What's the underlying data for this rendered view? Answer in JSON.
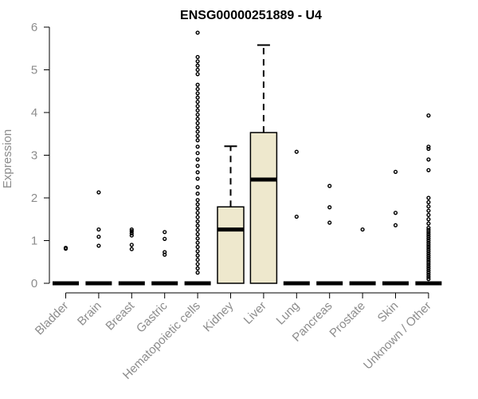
{
  "chart_data": {
    "type": "box",
    "title": "ENSG00000251889 - U4",
    "xlabel": "",
    "ylabel": "Expression",
    "ylim": [
      0,
      6
    ],
    "yticks": [
      0,
      1,
      2,
      3,
      4,
      5,
      6
    ],
    "grid": false,
    "categories": [
      "Bladder",
      "Brain",
      "Breast",
      "Gastric",
      "Hematopoietic cells",
      "Kidney",
      "Liver",
      "Lung",
      "Pancreas",
      "Prostate",
      "Skin",
      "Unknown / Other"
    ],
    "boxes": [
      {
        "category": "Bladder",
        "q1": 0,
        "median": 0,
        "q3": 0,
        "whisker_low": 0,
        "whisker_high": 0,
        "outliers": [
          0.81,
          0.83
        ]
      },
      {
        "category": "Brain",
        "q1": 0,
        "median": 0,
        "q3": 0,
        "whisker_low": 0,
        "whisker_high": 0,
        "outliers": [
          0.88,
          1.09,
          1.26,
          2.13
        ]
      },
      {
        "category": "Breast",
        "q1": 0,
        "median": 0,
        "q3": 0,
        "whisker_low": 0,
        "whisker_high": 0,
        "outliers": [
          0.8,
          0.9,
          1.12,
          1.17,
          1.22,
          1.26
        ]
      },
      {
        "category": "Gastric",
        "q1": 0,
        "median": 0,
        "q3": 0,
        "whisker_low": 0,
        "whisker_high": 0,
        "outliers": [
          0.67,
          0.73,
          1.04,
          1.2
        ]
      },
      {
        "category": "Hematopoietic cells",
        "q1": 0,
        "median": 0,
        "q3": 0,
        "whisker_low": 0,
        "whisker_high": 0,
        "outliers": [
          0.25,
          0.35,
          0.45,
          0.55,
          0.65,
          0.75,
          0.85,
          0.95,
          1.05,
          1.15,
          1.25,
          1.35,
          1.45,
          1.55,
          1.65,
          1.75,
          1.85,
          1.95,
          2.1,
          2.25,
          2.45,
          2.6,
          2.75,
          2.9,
          3.05,
          3.2,
          3.35,
          3.45,
          3.55,
          3.65,
          3.75,
          3.85,
          3.95,
          4.05,
          4.15,
          4.25,
          4.35,
          4.45,
          4.55,
          4.65,
          4.9,
          5.0,
          5.1,
          5.2,
          5.3,
          5.87
        ]
      },
      {
        "category": "Kidney",
        "q1": 0,
        "median": 1.26,
        "q3": 1.79,
        "whisker_low": 0,
        "whisker_high": 3.21,
        "outliers": []
      },
      {
        "category": "Liver",
        "q1": 0,
        "median": 2.43,
        "q3": 3.53,
        "whisker_low": 0,
        "whisker_high": 5.58,
        "outliers": []
      },
      {
        "category": "Lung",
        "q1": 0,
        "median": 0,
        "q3": 0,
        "whisker_low": 0,
        "whisker_high": 0,
        "outliers": [
          1.56,
          3.08
        ]
      },
      {
        "category": "Pancreas",
        "q1": 0,
        "median": 0,
        "q3": 0,
        "whisker_low": 0,
        "whisker_high": 0,
        "outliers": [
          1.42,
          1.78,
          2.28
        ]
      },
      {
        "category": "Prostate",
        "q1": 0,
        "median": 0,
        "q3": 0,
        "whisker_low": 0,
        "whisker_high": 0,
        "outliers": [
          1.26
        ]
      },
      {
        "category": "Skin",
        "q1": 0,
        "median": 0,
        "q3": 0,
        "whisker_low": 0,
        "whisker_high": 0,
        "outliers": [
          1.36,
          1.65,
          2.61
        ]
      },
      {
        "category": "Unknown / Other",
        "q1": 0,
        "median": 0,
        "q3": 0,
        "whisker_low": 0,
        "whisker_high": 0,
        "outliers": [
          0.1,
          0.15,
          0.2,
          0.25,
          0.3,
          0.35,
          0.4,
          0.45,
          0.5,
          0.55,
          0.6,
          0.65,
          0.7,
          0.75,
          0.8,
          0.85,
          0.9,
          0.95,
          1.0,
          1.05,
          1.1,
          1.15,
          1.2,
          1.25,
          1.3,
          1.4,
          1.5,
          1.6,
          1.7,
          1.8,
          1.9,
          2.0,
          2.65,
          2.9,
          3.15,
          3.2,
          3.93
        ]
      }
    ],
    "colors": {
      "box_fill": "#EEE8CD",
      "stroke": "#000000",
      "axis_text": "#8c8c8c",
      "title": "#000000"
    }
  }
}
